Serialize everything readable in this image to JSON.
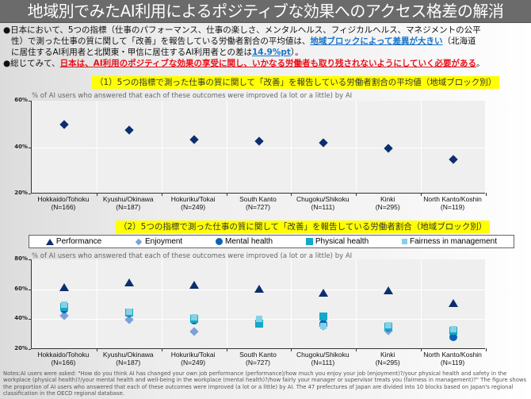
{
  "header": {
    "title": "地域別でみたAI利用によるポジティブな効果へのアクセス格差の解消"
  },
  "summary": {
    "bullet1_part1": "●日本において、5つの指標（仕事のパフォーマンス、仕事の楽しさ、メンタルヘルス、フィジカルヘルス、マネジメントの公平",
    "bullet1_part2_a": "性）で測った仕事の質に関して「改善」を報告している労働者割合の平均値は、",
    "bullet1_part2_highlight": "地域ブロックによって差異が大きい",
    "bullet1_part2_b": "（北海道",
    "bullet1_part3_a": "に居住するAI利用者と北関東・甲信に居住するAI利用者との差は",
    "bullet1_part3_highlight": "14.9%pt",
    "bullet1_part3_b": "）。",
    "bullet2_a": "●総じてみて、",
    "bullet2_highlight": "日本は、AI利用のポジティブな効果の享受に関し、いかなる労働者も取り残されないようにしていく必要がある",
    "bullet2_b": "。"
  },
  "section1": {
    "label": "（1）5つの指標で測った仕事の質に関して「改善」を報告している労働者割合の平均値（地域ブロック別）",
    "subtitle": "% of AI users who answered that each of these outcomes were improved (a lot or a little) by AI"
  },
  "section2": {
    "label": "（2）5つの指標で測った仕事の質に関して「改善」を報告している労働者割合（地域ブロック別）",
    "subtitle": "% of AI users who answered that each of these outcomes were improved (a lot or a little) by AI"
  },
  "legend": {
    "items": [
      "Performance",
      "Enjoyment",
      "Mental health",
      "Physical health",
      "Fairness in management"
    ]
  },
  "notes": "Notes:AI users were asked: \"How do you think AI has changed your own job performance (performance)/how much you enjoy your job (enjoyment)?/your physical health and safety in the workplace (physical health)?/your mental health and well-being in the workplace (mental health)?/how fairly your manager or supervisor treats you (fairness in management)?\" The figure shows the proportion of AI users who answered that each of these outcomes were improved (a lot or a little) by AI. The 47 prefectures of Japan are divided into 10 blocks based on Japan's regional classification in the OECD regional database.",
  "colors": {
    "title_bg": "#6b6b6b",
    "highlight_yellow": "#ffff00",
    "blue_text": "#1a73c8",
    "red_text": "#e8101a",
    "performance": "#0b2e6e",
    "enjoyment": "#7ba0d9",
    "mental_health": "#0a62b8",
    "physical_health": "#12a8c8",
    "fairness": "#86d1e6"
  },
  "chart_data": [
    {
      "type": "scatter",
      "title": "（1）5つの指標で測った仕事の質に関して「改善」を報告している労働者割合の平均値（地域ブロック別）",
      "subtitle": "% of AI users who answered that each of these outcomes were improved (a lot or a little) by AI",
      "categories": [
        "Hokkaido/Tohoku",
        "Kyushu/Okinawa",
        "Hokuriku/Tokai",
        "South Kanto",
        "Chugoku/Shikoku",
        "Kinki",
        "North Kanto/Koshin"
      ],
      "sample_sizes": [
        "(N=166)",
        "(N=187)",
        "(N=249)",
        "(N=727)",
        "(N=111)",
        "(N=295)",
        "(N=119)"
      ],
      "values": [
        49.6,
        47.4,
        43.3,
        42.7,
        41.8,
        39.4,
        34.7
      ],
      "ylim": [
        20,
        60
      ],
      "yticks": [
        "20%",
        "40%",
        "60%"
      ],
      "grid": true,
      "marker": "diamond"
    },
    {
      "type": "scatter",
      "title": "（2）5つの指標で測った仕事の質に関して「改善」を報告している労働者割合（地域ブロック別）",
      "subtitle": "% of AI users who answered that each of these outcomes were improved (a lot or a little) by AI",
      "categories": [
        "Hokkaido/Tohoku",
        "Kyushu/Okinawa",
        "Hokuriku/Tokai",
        "South Kanto",
        "Chugoku/Shikoku",
        "Kinki",
        "North Kanto/Koshin"
      ],
      "sample_sizes": [
        "(N=166)",
        "(N=187)",
        "(N=249)",
        "(N=727)",
        "(N=111)",
        "(N=295)",
        "(N=119)"
      ],
      "ylim": [
        20,
        80
      ],
      "yticks": [
        "20%",
        "40%",
        "60%",
        "80%"
      ],
      "grid": true,
      "legend_position": "top",
      "series": [
        {
          "name": "Performance",
          "marker": "triangle",
          "values": [
            61.5,
            64.5,
            63.0,
            60.5,
            57.5,
            59.5,
            51.0
          ]
        },
        {
          "name": "Enjoyment",
          "marker": "diamond",
          "values": [
            42.5,
            39.5,
            31.5,
            37.0,
            35.5,
            32.0,
            31.0
          ]
        },
        {
          "name": "Mental health",
          "marker": "circle",
          "values": [
            46.5,
            44.0,
            39.0,
            37.5,
            37.0,
            34.5,
            28.0
          ]
        },
        {
          "name": "Physical health",
          "marker": "square",
          "values": [
            48.0,
            44.5,
            40.0,
            37.0,
            42.0,
            35.0,
            32.0
          ]
        },
        {
          "name": "Fairness in management",
          "marker": "square-small",
          "values": [
            49.5,
            45.0,
            41.5,
            40.0,
            35.5,
            36.0,
            33.5
          ]
        }
      ]
    }
  ]
}
